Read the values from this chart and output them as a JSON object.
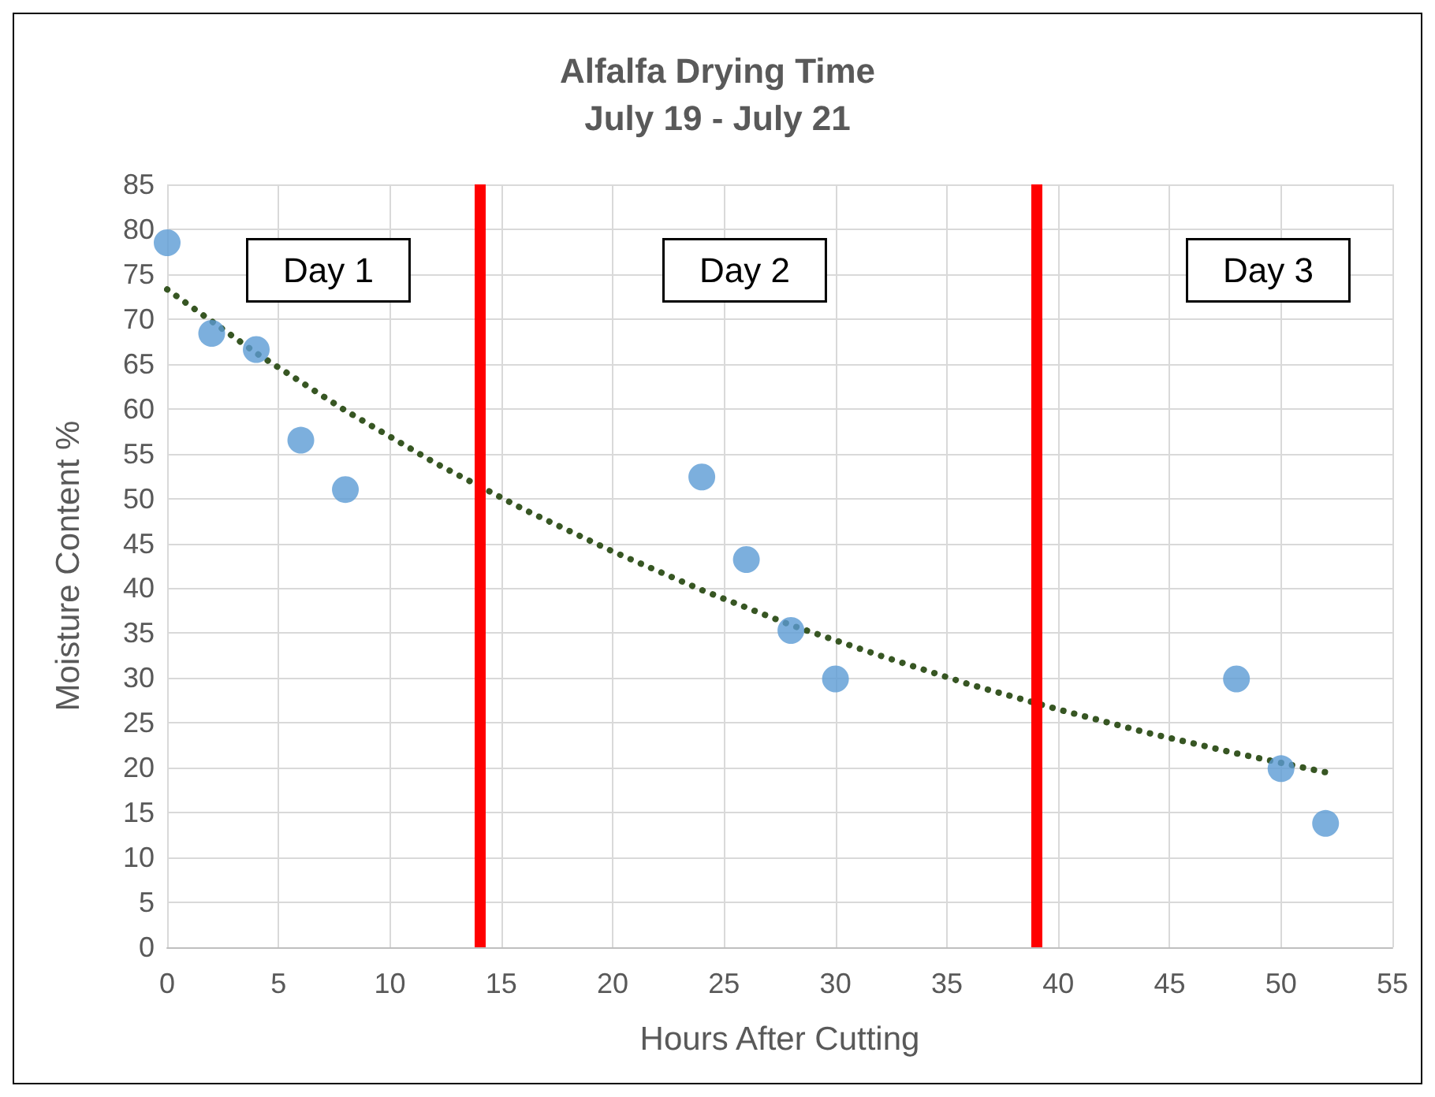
{
  "chart_data": {
    "type": "scatter",
    "title": "Alfalfa Drying Time",
    "subtitle": "July 19 - July 21",
    "xlabel": "Hours After Cutting",
    "ylabel": "Moisture Content %",
    "xlim": [
      0,
      55
    ],
    "xticks": [
      0,
      5,
      10,
      15,
      20,
      25,
      30,
      35,
      40,
      45,
      50,
      55
    ],
    "ylim": [
      0,
      85
    ],
    "yticks": [
      0,
      5,
      10,
      15,
      20,
      25,
      30,
      35,
      40,
      45,
      50,
      55,
      60,
      65,
      70,
      75,
      80,
      85
    ],
    "grid": true,
    "marker": "circle",
    "series": [
      {
        "color": "#5b9bd5",
        "x": [
          0,
          2,
          4,
          6,
          8,
          24,
          26,
          28,
          30,
          48,
          50,
          52
        ],
        "values": [
          78.5,
          68.4,
          66.6,
          56.5,
          51.0,
          52.4,
          43.2,
          35.3,
          29.9,
          29.9,
          19.9,
          13.8
        ]
      },
      {
        "type": "line",
        "color": "#375623",
        "line_style": "dotted",
        "marker": "none",
        "x": [
          0,
          4,
          8,
          12,
          16,
          20,
          24,
          28,
          32,
          36,
          40,
          44,
          48,
          52
        ],
        "values": [
          73.3,
          66.2,
          59.8,
          54.0,
          48.8,
          44.1,
          39.8,
          35.9,
          32.5,
          29.3,
          26.5,
          23.9,
          21.6,
          19.5
        ]
      }
    ],
    "ref_lines": [
      {
        "axis": "x",
        "value": 14,
        "color": "#ff0000",
        "line_style": "solid"
      },
      {
        "axis": "x",
        "value": 39,
        "color": "#ff0000",
        "line_style": "solid"
      }
    ],
    "annotations": [
      "Day 1",
      "Day 2",
      "Day 3"
    ]
  }
}
